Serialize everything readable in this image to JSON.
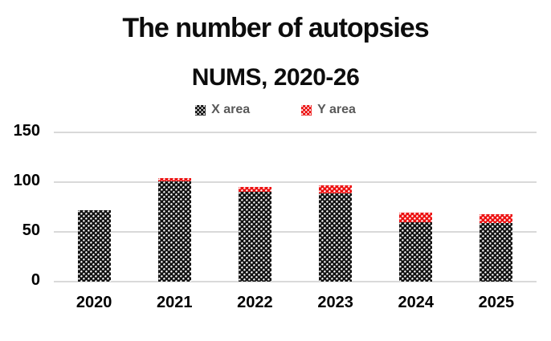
{
  "title": "The number of autopsies",
  "subtitle": "NUMS, 2020-26",
  "legend": {
    "items": [
      {
        "label": "X area",
        "color": "#111111"
      },
      {
        "label": "Y area",
        "color": "#ec1111"
      }
    ]
  },
  "colors": {
    "background": "#ffffff",
    "gridline": "#d9d9d9",
    "axis_text": "#000000",
    "legend_text": "#595959",
    "series_x": "#111111",
    "series_y": "#ec1111"
  },
  "chart_data": {
    "type": "bar",
    "stacked": true,
    "title": "The number of autopsies",
    "subtitle": "NUMS, 2020-26",
    "categories": [
      "2020",
      "2021",
      "2022",
      "2023",
      "2024",
      "2025"
    ],
    "series": [
      {
        "name": "X area",
        "color": "#111111",
        "values": [
          72,
          101,
          90,
          89,
          60,
          59
        ]
      },
      {
        "name": "Y area",
        "color": "#ec1111",
        "values": [
          0,
          3,
          5,
          8,
          9,
          9
        ]
      }
    ],
    "totals": [
      72,
      104,
      95,
      97,
      69,
      68
    ],
    "xlabel": "",
    "ylabel": "",
    "ylim": [
      0,
      150
    ],
    "yticks": [
      0,
      50,
      100,
      150
    ],
    "grid": true,
    "legend_position": "top",
    "pattern": "white-dots"
  }
}
